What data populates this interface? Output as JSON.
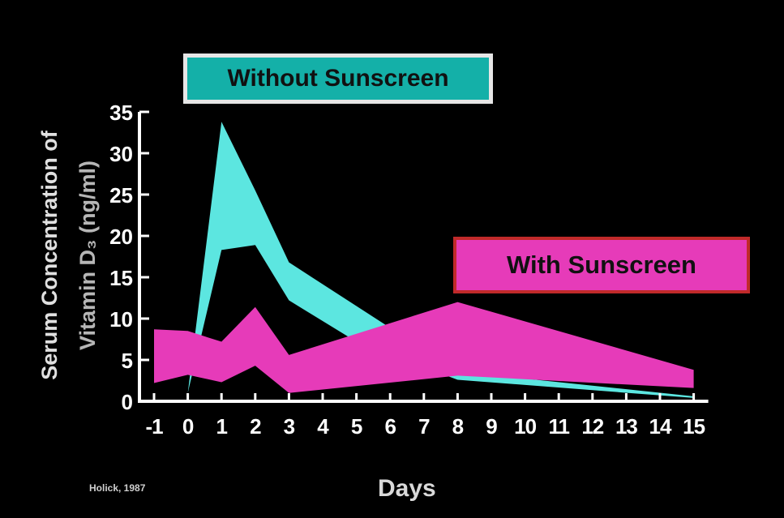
{
  "chart_data": {
    "type": "area",
    "xlabel": "Days",
    "ylabel_line1": "Serum Concentration of",
    "ylabel_line2": "Vitamin D₃ (ng/ml)",
    "x_ticks": [
      "-1",
      "0",
      "1",
      "2",
      "3",
      "4",
      "5",
      "6",
      "7",
      "8",
      "9",
      "10",
      "11",
      "12",
      "13",
      "14",
      "15"
    ],
    "y_ticks": [
      "0",
      "5",
      "10",
      "15",
      "20",
      "25",
      "30",
      "35"
    ],
    "ylim": [
      0,
      35
    ],
    "xlim": [
      -1,
      15
    ],
    "grid": false,
    "series": [
      {
        "name": "Without Sunscreen",
        "color": "#5ce6e0",
        "upper": [
          [
            0,
            1
          ],
          [
            1,
            33.8
          ],
          [
            2,
            25.5
          ],
          [
            3,
            16.8
          ],
          [
            8,
            3.6
          ],
          [
            15,
            0.6
          ]
        ],
        "lower": [
          [
            0,
            1
          ],
          [
            1,
            18.3
          ],
          [
            2,
            18.9
          ],
          [
            3,
            12.2
          ],
          [
            5,
            7.2
          ],
          [
            8,
            2.6
          ],
          [
            15,
            0.4
          ]
        ]
      },
      {
        "name": "With Sunscreen",
        "color": "#e63bb9",
        "upper": [
          [
            -1,
            8.7
          ],
          [
            0,
            8.5
          ],
          [
            1,
            7.2
          ],
          [
            2,
            11.4
          ],
          [
            3,
            5.6
          ],
          [
            8,
            12.0
          ],
          [
            15,
            3.8
          ]
        ],
        "lower": [
          [
            -1,
            2.2
          ],
          [
            0,
            3.2
          ],
          [
            1,
            2.3
          ],
          [
            2,
            4.3
          ],
          [
            3,
            1.0
          ],
          [
            8,
            3.1
          ],
          [
            15,
            1.6
          ]
        ]
      }
    ],
    "legend": [
      {
        "label": "Without Sunscreen",
        "color": "#14b0a8"
      },
      {
        "label": "With Sunscreen",
        "color": "#e63bb9"
      }
    ],
    "source": "Holick, 1987"
  }
}
